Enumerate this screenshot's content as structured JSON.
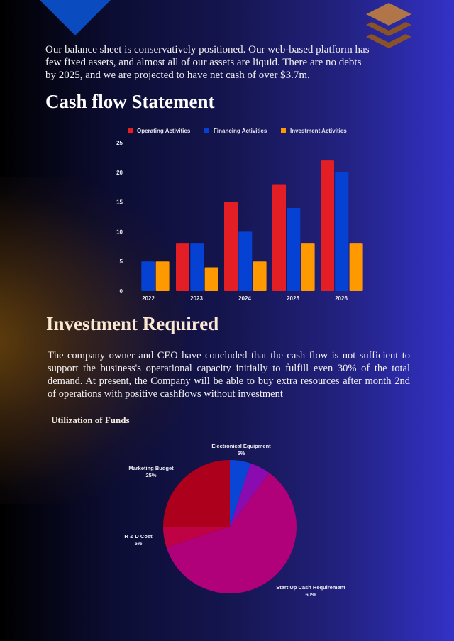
{
  "decor": {
    "triangle_color": "#0a4cbf",
    "layers_icon_colors": [
      "#b07648",
      "#8a5327"
    ]
  },
  "intro": {
    "text": "Our balance sheet is conservatively positioned. Our web-based platform has few fixed assets, and almost all of our assets are liquid. There are no debts by 2025, and we are projected to have net cash of over $3.7m."
  },
  "cashflow": {
    "title": "Cash flow Statement"
  },
  "investment": {
    "title": "Investment Required",
    "text": "The company owner and CEO have concluded that the cash flow is not sufficient to support the business's operational capacity initially to fulfill even 30% of the total demand. At present, the Company will be able to buy extra resources after month 2nd of operations with positive cashflows without investment",
    "subtitle": "Utilization of Funds"
  },
  "chart_data": [
    {
      "type": "bar",
      "title": "",
      "categories": [
        "2022",
        "2023",
        "2024",
        "2025",
        "2026"
      ],
      "series": [
        {
          "name": "Operating Activities",
          "color": "#e31e24",
          "values": [
            0,
            8,
            15,
            18,
            22
          ]
        },
        {
          "name": "Financing Activities",
          "color": "#0542d4",
          "values": [
            5,
            8,
            10,
            14,
            20
          ]
        },
        {
          "name": "Investment Activities",
          "color": "#ff9900",
          "values": [
            5,
            4,
            5,
            8,
            8
          ]
        }
      ],
      "yticks": [
        "0",
        "5",
        "10",
        "15",
        "20",
        "25"
      ],
      "ylim": [
        0,
        25
      ],
      "xlabel": "",
      "ylabel": "",
      "grid": false,
      "legend_position": "top"
    },
    {
      "type": "pie",
      "title": "Utilization of Funds",
      "slices": [
        {
          "label": "Electronical Equipment",
          "value": 5,
          "pct_label": "5%",
          "color": "#0a45d6"
        },
        {
          "label": "",
          "value": 5,
          "pct_label": "",
          "color": "#8a0bb0"
        },
        {
          "label": "Start Up Cash Requirement",
          "value": 60,
          "pct_label": "60%",
          "color": "#b0017a"
        },
        {
          "label": "R & D Cost",
          "value": 5,
          "pct_label": "5%",
          "color": "#bf0244"
        },
        {
          "label": "Marketing Budget",
          "value": 25,
          "pct_label": "25%",
          "color": "#ad001d"
        }
      ]
    }
  ]
}
